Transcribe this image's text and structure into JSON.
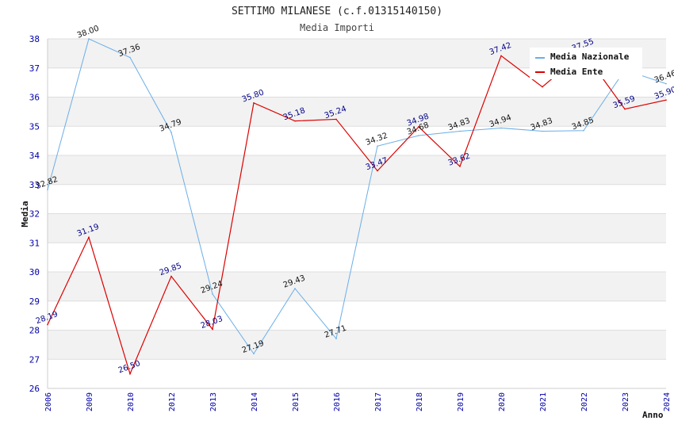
{
  "chart_data": {
    "type": "line",
    "title": "SETTIMO MILANESE (c.f.01315140150)",
    "subtitle": "Media Importi",
    "xlabel": "Anno",
    "ylabel": "Media",
    "categories": [
      "2006",
      "2009",
      "2010",
      "2012",
      "2013",
      "2014",
      "2015",
      "2016",
      "2017",
      "2018",
      "2019",
      "2020",
      "2021",
      "2022",
      "2023",
      "2024"
    ],
    "ylim": [
      26,
      38
    ],
    "yticks": [
      26,
      27,
      28,
      29,
      30,
      31,
      32,
      33,
      34,
      35,
      36,
      37,
      38
    ],
    "grid": "horizontal bands",
    "legend_position": "top-right",
    "series": [
      {
        "name": "Media Nazionale",
        "color": "#6aaee8",
        "values": [
          32.82,
          38.0,
          37.36,
          34.79,
          29.24,
          27.19,
          29.43,
          27.71,
          34.32,
          34.68,
          34.83,
          34.94,
          34.83,
          34.85,
          36.93,
          36.46
        ],
        "labels": [
          "32.82",
          "38.00",
          "37.36",
          "34.79",
          "29.24",
          "27.19",
          "29.43",
          "27.71",
          "34.32",
          "34.68",
          "34.83",
          "34.94",
          "34.83",
          "34.85",
          "",
          "36.46"
        ]
      },
      {
        "name": "Media Ente",
        "color": "#dd0000",
        "values": [
          28.19,
          31.19,
          26.5,
          29.85,
          28.03,
          35.8,
          35.18,
          35.24,
          33.47,
          34.98,
          33.62,
          37.42,
          36.35,
          37.55,
          35.59,
          35.9
        ],
        "labels": [
          "28.19",
          "31.19",
          "26.50",
          "29.85",
          "28.03",
          "35.80",
          "35.18",
          "35.24",
          "33.47",
          "34.98",
          "33.62",
          "37.42",
          "",
          "37.55",
          "35.59",
          "35.90"
        ]
      }
    ]
  }
}
